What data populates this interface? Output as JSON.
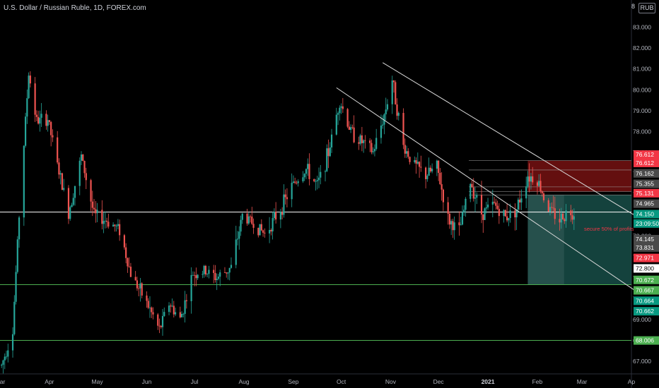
{
  "chart": {
    "title": "U.S. Dollar / Russian Ruble, 1D, FOREX.com",
    "currency": "RUB",
    "scale_mode": "8",
    "annotation": "secure 50% of profits"
  },
  "colors": {
    "background": "#000000",
    "up": "#26a69a",
    "down": "#ef5350",
    "axis_text": "#b2b5be",
    "trendline": "#d9d9d9",
    "level_white": "#ffffff",
    "level_green": "#4caf50",
    "level_gray": "#9e9e9e",
    "stop_zone": "#b71c1c",
    "target_zone": "#006e63"
  },
  "chart_data": {
    "type": "candlestick",
    "symbol": "USDRUB",
    "interval": "1D",
    "ylim": [
      66.4,
      84.3
    ],
    "y_ticks": [
      67.0,
      68.0,
      69.0,
      70.0,
      71.0,
      72.0,
      73.0,
      74.0,
      75.0,
      76.0,
      77.0,
      78.0,
      79.0,
      80.0,
      81.0,
      82.0,
      83.0
    ],
    "x_ticks": [
      "Mar",
      "Apr",
      "May",
      "Jun",
      "Jul",
      "Aug",
      "Sep",
      "Oct",
      "Nov",
      "Dec",
      "2021",
      "Feb",
      "Mar",
      "Ap"
    ],
    "price_path": [
      {
        "date": "2020-03-02",
        "close": 66.8
      },
      {
        "date": "2020-03-09",
        "close": 68.5
      },
      {
        "date": "2020-03-13",
        "close": 74.0
      },
      {
        "date": "2020-03-19",
        "close": 80.8
      },
      {
        "date": "2020-03-24",
        "close": 78.5
      },
      {
        "date": "2020-03-31",
        "close": 78.6
      },
      {
        "date": "2020-04-06",
        "close": 76.4
      },
      {
        "date": "2020-04-13",
        "close": 74.1
      },
      {
        "date": "2020-04-21",
        "close": 76.8
      },
      {
        "date": "2020-04-29",
        "close": 74.0
      },
      {
        "date": "2020-05-08",
        "close": 73.7
      },
      {
        "date": "2020-05-15",
        "close": 73.3
      },
      {
        "date": "2020-05-22",
        "close": 71.2
      },
      {
        "date": "2020-06-01",
        "close": 69.8
      },
      {
        "date": "2020-06-09",
        "close": 68.5
      },
      {
        "date": "2020-06-15",
        "close": 69.8
      },
      {
        "date": "2020-06-22",
        "close": 69.0
      },
      {
        "date": "2020-06-30",
        "close": 71.2
      },
      {
        "date": "2020-07-08",
        "close": 71.3
      },
      {
        "date": "2020-07-15",
        "close": 71.0
      },
      {
        "date": "2020-07-24",
        "close": 71.5
      },
      {
        "date": "2020-07-31",
        "close": 74.0
      },
      {
        "date": "2020-08-07",
        "close": 73.6
      },
      {
        "date": "2020-08-14",
        "close": 73.1
      },
      {
        "date": "2020-08-24",
        "close": 74.3
      },
      {
        "date": "2020-09-01",
        "close": 75.5
      },
      {
        "date": "2020-09-09",
        "close": 76.2
      },
      {
        "date": "2020-09-16",
        "close": 75.4
      },
      {
        "date": "2020-09-23",
        "close": 77.0
      },
      {
        "date": "2020-09-30",
        "close": 79.5
      },
      {
        "date": "2020-10-07",
        "close": 78.0
      },
      {
        "date": "2020-10-14",
        "close": 77.5
      },
      {
        "date": "2020-10-21",
        "close": 77.0
      },
      {
        "date": "2020-10-28",
        "close": 78.8
      },
      {
        "date": "2020-11-02",
        "close": 80.5
      },
      {
        "date": "2020-11-09",
        "close": 77.3
      },
      {
        "date": "2020-11-16",
        "close": 76.4
      },
      {
        "date": "2020-11-23",
        "close": 75.9
      },
      {
        "date": "2020-11-30",
        "close": 76.3
      },
      {
        "date": "2020-12-07",
        "close": 73.8
      },
      {
        "date": "2020-12-14",
        "close": 73.2
      },
      {
        "date": "2020-12-21",
        "close": 75.6
      },
      {
        "date": "2020-12-28",
        "close": 74.1
      },
      {
        "date": "2021-01-05",
        "close": 74.5
      },
      {
        "date": "2021-01-12",
        "close": 73.9
      },
      {
        "date": "2021-01-19",
        "close": 74.3
      },
      {
        "date": "2021-01-26",
        "close": 75.9
      },
      {
        "date": "2021-02-01",
        "close": 75.7
      },
      {
        "date": "2021-02-08",
        "close": 74.3
      },
      {
        "date": "2021-02-15",
        "close": 73.8
      },
      {
        "date": "2021-02-19",
        "close": 74.1
      },
      {
        "date": "2021-02-24",
        "close": 74.15
      }
    ],
    "trendlines": [
      {
        "from": {
          "date": "2020-09-28",
          "price": 80.1
        },
        "to": {
          "date": "2021-04-05",
          "price": 70.3
        }
      },
      {
        "from": {
          "date": "2020-10-27",
          "price": 81.3
        },
        "to": {
          "date": "2021-04-05",
          "price": 73.9
        }
      }
    ],
    "horizontal_levels": [
      {
        "price": 74.145,
        "color": "white"
      },
      {
        "price": 70.672,
        "color": "green"
      },
      {
        "price": 68.006,
        "color": "green"
      },
      {
        "price": 74.965,
        "color": "gray"
      },
      {
        "price": 75.131,
        "color": "gray"
      },
      {
        "price": 75.355,
        "color": "gray"
      },
      {
        "price": 76.162,
        "color": "gray"
      },
      {
        "price": 76.612,
        "color": "gray"
      }
    ],
    "position_zones": [
      {
        "type": "stop",
        "from_date": "2021-01-26",
        "top": 76.612,
        "bottom": 75.131
      },
      {
        "type": "target",
        "from_date": "2021-01-26",
        "top": 74.965,
        "bottom": 70.672
      }
    ],
    "price_labels": [
      {
        "text": "76.612",
        "price": 76.9,
        "color": "#f23645"
      },
      {
        "text": "76.612",
        "price": 76.5,
        "color": "#f23645"
      },
      {
        "text": "76.162",
        "price": 76.0,
        "color": "#4a4a4a"
      },
      {
        "text": "75.355",
        "price": 75.5,
        "color": "#4a4a4a"
      },
      {
        "text": "75.131",
        "price": 75.05,
        "color": "#f23645"
      },
      {
        "text": "74.965",
        "price": 74.55,
        "color": "#4a4a4a"
      },
      {
        "text": "74.150",
        "price": 74.05,
        "color": "#089981"
      },
      {
        "text": "23:09:50",
        "price": 73.6,
        "color": "#089981"
      },
      {
        "text": "74.145",
        "price": 72.85,
        "color": "#4a4a4a"
      },
      {
        "text": "73.831",
        "price": 72.45,
        "color": "#4a4a4a"
      },
      {
        "text": "72.971",
        "price": 71.95,
        "color": "#f23645"
      },
      {
        "text": "72.800",
        "price": 71.45,
        "color": "#ffffff"
      },
      {
        "text": "70.672",
        "price": 70.9,
        "color": "#4caf50"
      },
      {
        "text": "70.667",
        "price": 70.4,
        "color": "#4caf50"
      },
      {
        "text": "70.664",
        "price": 69.9,
        "color": "#089981"
      },
      {
        "text": "70.662",
        "price": 69.4,
        "color": "#089981"
      },
      {
        "text": "68.006",
        "price": 68.0,
        "color": "#4caf50"
      }
    ]
  }
}
